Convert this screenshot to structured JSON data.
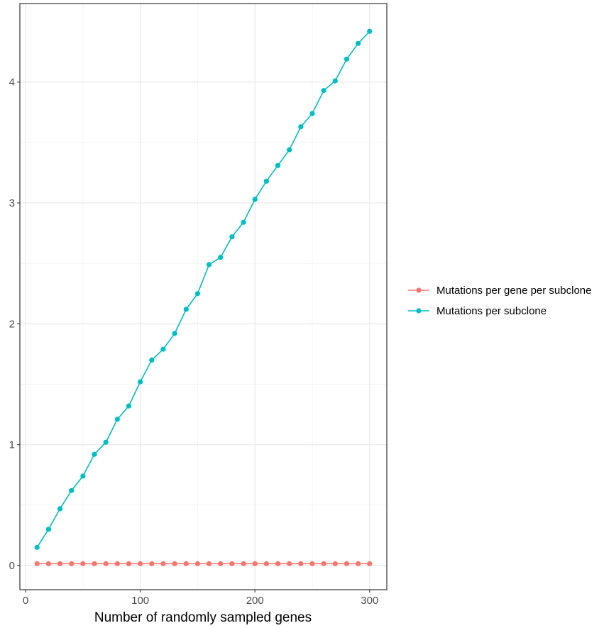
{
  "chart_data": {
    "type": "line",
    "title": "",
    "xlabel": "Number of randomly sampled genes",
    "ylabel": "",
    "xlim": [
      -5,
      315
    ],
    "ylim": [
      -0.2,
      4.65
    ],
    "xticks": [
      0,
      100,
      200,
      300
    ],
    "yticks": [
      0,
      1,
      2,
      3,
      4
    ],
    "grid": true,
    "legend_position": "right",
    "x": [
      10,
      20,
      30,
      40,
      50,
      60,
      70,
      80,
      90,
      100,
      110,
      120,
      130,
      140,
      150,
      160,
      170,
      180,
      190,
      200,
      210,
      220,
      230,
      240,
      250,
      260,
      270,
      280,
      290,
      300
    ],
    "series": [
      {
        "name": "Mutations per gene per subclone",
        "color": "#F8766D",
        "values": [
          0.015,
          0.015,
          0.015,
          0.015,
          0.015,
          0.015,
          0.015,
          0.015,
          0.015,
          0.015,
          0.015,
          0.015,
          0.015,
          0.015,
          0.015,
          0.015,
          0.015,
          0.015,
          0.015,
          0.015,
          0.015,
          0.015,
          0.015,
          0.015,
          0.015,
          0.015,
          0.015,
          0.015,
          0.015,
          0.015
        ]
      },
      {
        "name": "Mutations per subclone",
        "color": "#00BFC4",
        "values": [
          0.15,
          0.3,
          0.47,
          0.62,
          0.74,
          0.92,
          1.02,
          1.21,
          1.32,
          1.52,
          1.7,
          1.79,
          1.92,
          2.12,
          2.25,
          2.49,
          2.55,
          2.72,
          2.84,
          3.03,
          3.18,
          3.31,
          3.44,
          3.63,
          3.74,
          3.93,
          4.01,
          4.19,
          4.32,
          4.42
        ]
      }
    ]
  }
}
